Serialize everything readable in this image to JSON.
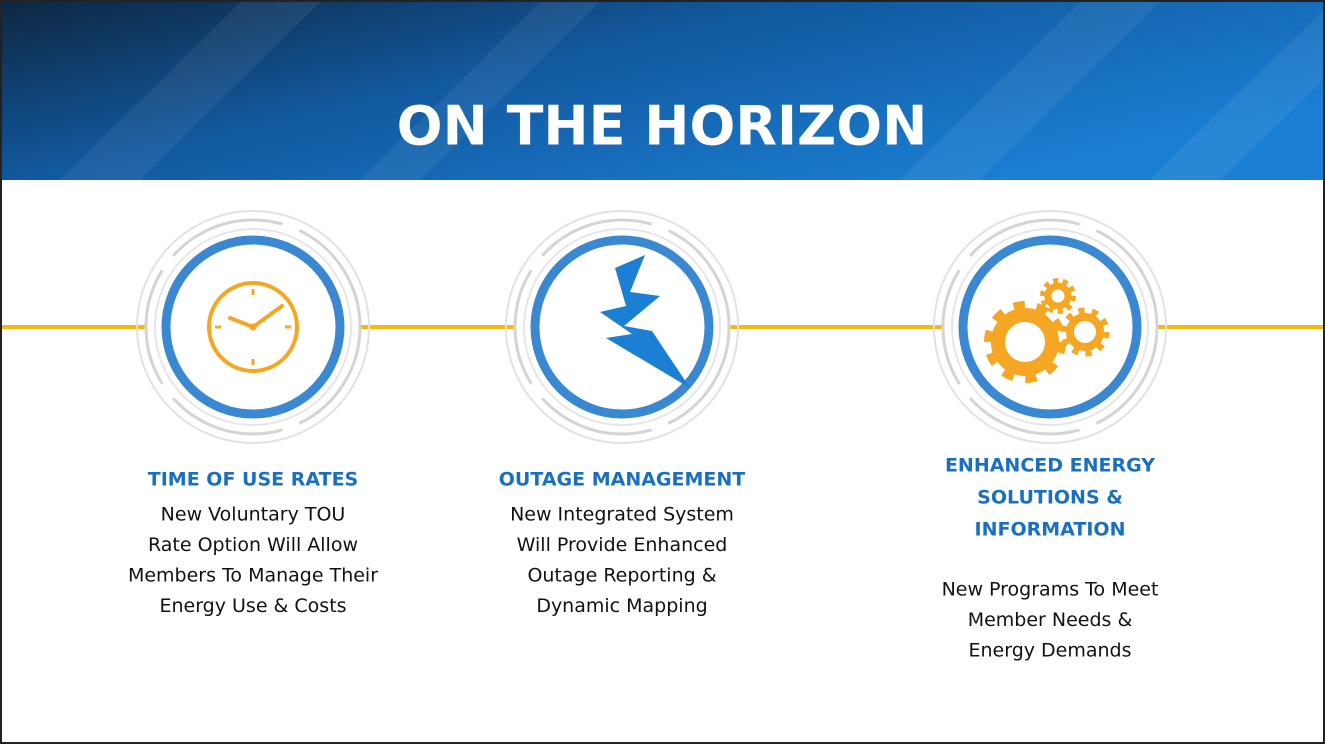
{
  "header": {
    "title": "ON THE HORIZON"
  },
  "items": [
    {
      "heading": [
        "TIME OF USE RATES"
      ],
      "body": [
        "New Voluntary TOU",
        "Rate Option Will Allow",
        "Members To Manage Their",
        "Energy Use & Costs"
      ]
    },
    {
      "heading": [
        "OUTAGE MANAGEMENT"
      ],
      "body": [
        "New Integrated System",
        "Will Provide Enhanced",
        "Outage Reporting &",
        "Dynamic Mapping"
      ]
    },
    {
      "heading": [
        "ENHANCED ENERGY",
        "SOLUTIONS &",
        "INFORMATION"
      ],
      "body": [
        "New Programs To Meet",
        "Member Needs &",
        "Energy Demands"
      ]
    }
  ]
}
